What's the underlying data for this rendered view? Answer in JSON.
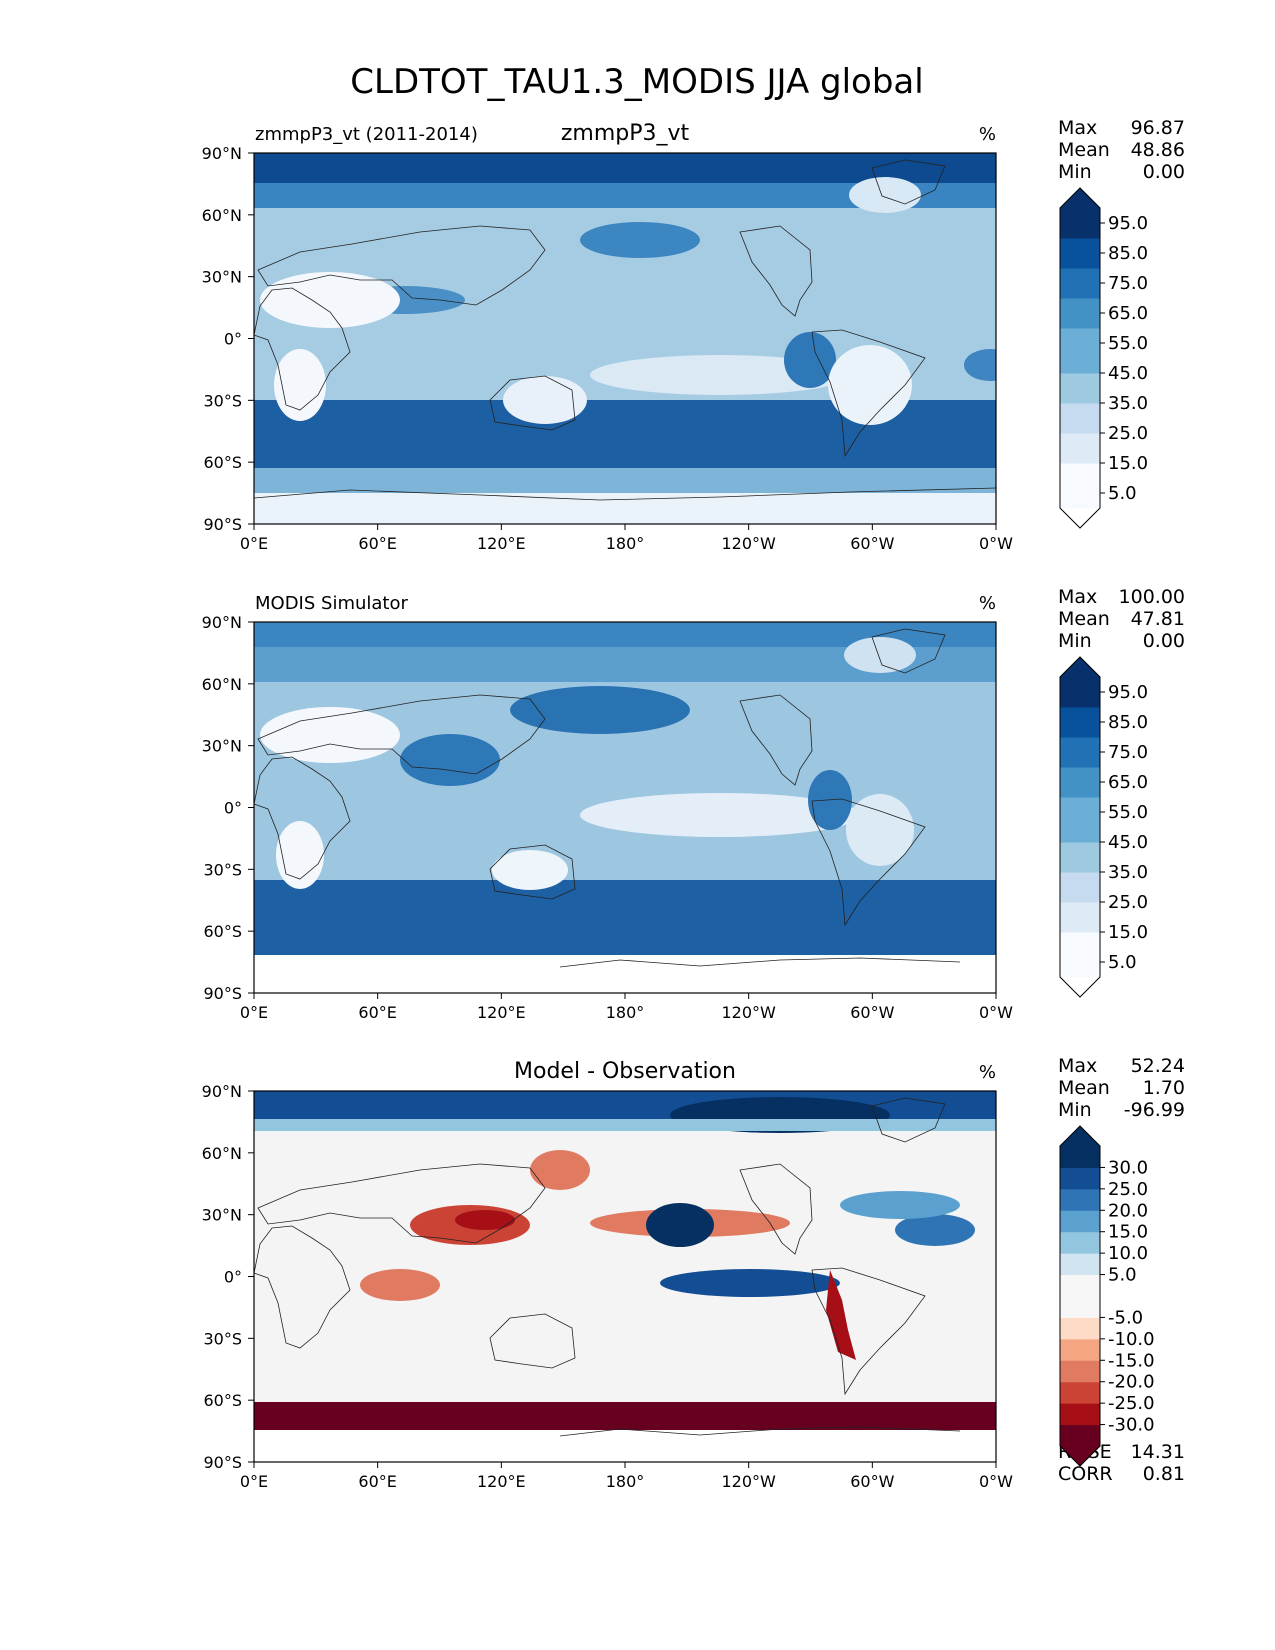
{
  "figure": {
    "title": "CLDTOT_TAU1.3_MODIS JJA global"
  },
  "chart_data": [
    {
      "type": "heatmap",
      "panel": "test",
      "left_label": "zmmpP3_vt (2011-2014)",
      "title": "zmmpP3_vt",
      "units": "%",
      "stats": [
        {
          "label": "Max",
          "value": "96.87"
        },
        {
          "label": "Mean",
          "value": "48.86"
        },
        {
          "label": "Min",
          "value": "0.00"
        }
      ],
      "colorbar": {
        "levels": [
          0,
          5,
          10,
          15,
          20,
          25,
          30,
          35,
          40,
          45,
          50,
          55,
          60,
          65,
          70,
          75,
          80,
          85,
          90,
          95,
          100
        ],
        "tick_labels": [
          "5.0",
          "15.0",
          "25.0",
          "35.0",
          "45.0",
          "55.0",
          "65.0",
          "75.0",
          "85.0",
          "95.0"
        ],
        "colors": [
          "#f7fbff",
          "#deebf7",
          "#c6dbef",
          "#9ecae1",
          "#6baed6",
          "#4292c6",
          "#2171b5",
          "#08519c",
          "#08306b"
        ],
        "under_color": "#ffffff",
        "over_color": "#08306b"
      },
      "x_ticks": [
        "0°E",
        "60°E",
        "120°E",
        "180°",
        "120°W",
        "60°W",
        "0°W"
      ],
      "y_ticks": [
        "90°N",
        "60°N",
        "30°N",
        "0°",
        "30°S",
        "60°S",
        "90°S"
      ],
      "xlim": [
        0,
        360
      ],
      "ylim": [
        -90,
        90
      ]
    },
    {
      "type": "heatmap",
      "panel": "reference",
      "left_label": "MODIS Simulator",
      "title": "",
      "units": "%",
      "stats": [
        {
          "label": "Max",
          "value": "100.00"
        },
        {
          "label": "Mean",
          "value": "47.81"
        },
        {
          "label": "Min",
          "value": "0.00"
        }
      ],
      "colorbar": {
        "levels": [
          0,
          5,
          10,
          15,
          20,
          25,
          30,
          35,
          40,
          45,
          50,
          55,
          60,
          65,
          70,
          75,
          80,
          85,
          90,
          95,
          100
        ],
        "tick_labels": [
          "5.0",
          "15.0",
          "25.0",
          "35.0",
          "45.0",
          "55.0",
          "65.0",
          "75.0",
          "85.0",
          "95.0"
        ],
        "colors": [
          "#f7fbff",
          "#deebf7",
          "#c6dbef",
          "#9ecae1",
          "#6baed6",
          "#4292c6",
          "#2171b5",
          "#08519c",
          "#08306b"
        ],
        "under_color": "#ffffff",
        "over_color": "#08306b"
      },
      "x_ticks": [
        "0°E",
        "60°E",
        "120°E",
        "180°",
        "120°W",
        "60°W",
        "0°W"
      ],
      "y_ticks": [
        "90°N",
        "60°N",
        "30°N",
        "0°",
        "30°S",
        "60°S",
        "90°S"
      ],
      "xlim": [
        0,
        360
      ],
      "ylim": [
        -90,
        90
      ],
      "missing_south_of": -72
    },
    {
      "type": "heatmap",
      "panel": "difference",
      "left_label": "",
      "title": "Model - Observation",
      "units": "%",
      "stats": [
        {
          "label": "Max",
          "value": "52.24"
        },
        {
          "label": "Mean",
          "value": "1.70"
        },
        {
          "label": "Min",
          "value": "-96.99"
        }
      ],
      "metrics": [
        {
          "label": "RMSE",
          "value": "14.31"
        },
        {
          "label": "CORR",
          "value": "0.81"
        }
      ],
      "colorbar": {
        "levels": [
          -35,
          -30,
          -25,
          -20,
          -15,
          -10,
          -5,
          5,
          10,
          15,
          20,
          25,
          30,
          35
        ],
        "tick_labels": [
          "-30.0",
          "-25.0",
          "-20.0",
          "-15.0",
          "-10.0",
          "-5.0",
          "5.0",
          "10.0",
          "15.0",
          "20.0",
          "25.0",
          "30.0"
        ],
        "colors": [
          "#67001f",
          "#a50f15",
          "#cb4335",
          "#e07b62",
          "#f4a582",
          "#fddbc7",
          "#f7f7f7",
          "#d1e5f0",
          "#92c5de",
          "#5aa1cf",
          "#2f74b5",
          "#134e94",
          "#053061"
        ],
        "under_color": "#67001f",
        "over_color": "#053061"
      },
      "x_ticks": [
        "0°E",
        "60°E",
        "120°E",
        "180°",
        "120°W",
        "60°W",
        "0°W"
      ],
      "y_ticks": [
        "90°N",
        "60°N",
        "30°N",
        "0°",
        "30°S",
        "60°S",
        "90°S"
      ],
      "xlim": [
        0,
        360
      ],
      "ylim": [
        -90,
        90
      ],
      "missing_south_of": -72
    }
  ]
}
